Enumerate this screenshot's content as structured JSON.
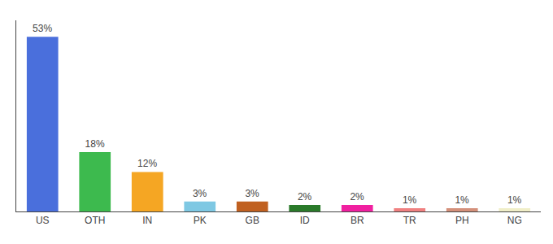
{
  "chart_data": {
    "type": "bar",
    "categories": [
      "US",
      "OTH",
      "IN",
      "PK",
      "GB",
      "ID",
      "BR",
      "TR",
      "PH",
      "NG"
    ],
    "values": [
      53,
      18,
      12,
      3,
      3,
      2,
      2,
      1,
      1,
      1
    ],
    "value_labels": [
      "53%",
      "18%",
      "12%",
      "3%",
      "3%",
      "2%",
      "2%",
      "1%",
      "1%",
      "1%"
    ],
    "colors": [
      "#4a6fdc",
      "#3dba4e",
      "#f5a623",
      "#7ec8e3",
      "#c06020",
      "#2a7a2a",
      "#f020a0",
      "#f08080",
      "#d4907a",
      "#f0eec8"
    ],
    "ylim": [
      0,
      58
    ],
    "data_labels": true,
    "grid": false,
    "tick_labels": "x"
  }
}
